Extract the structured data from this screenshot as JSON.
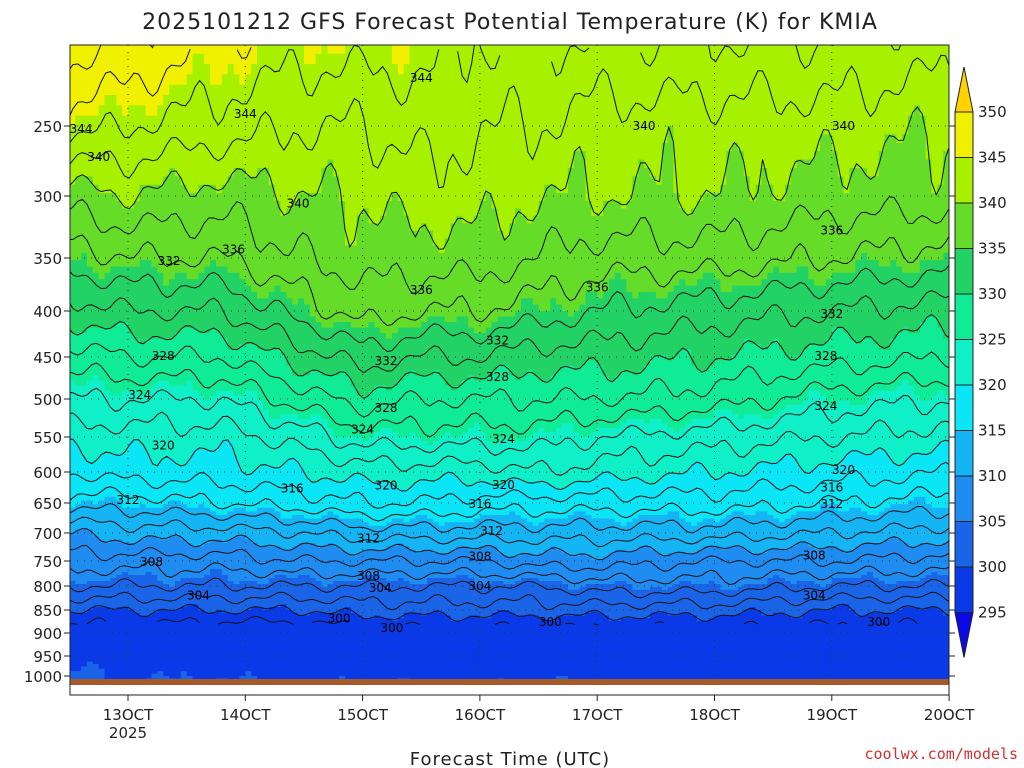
{
  "chart_data": {
    "type": "contour",
    "title": "2025101212 GFS Forecast Potential Temperature (K) for KMIA",
    "xlabel": "Forecast Time (UTC)",
    "ylabel": "",
    "credit": "coolwx.com/models",
    "x_ticks": [
      "13OCT",
      "14OCT",
      "15OCT",
      "16OCT",
      "17OCT",
      "18OCT",
      "19OCT",
      "20OCT"
    ],
    "x_year": "2025",
    "y_ticks": [
      "250",
      "300",
      "350",
      "400",
      "450",
      "500",
      "550",
      "600",
      "650",
      "700",
      "750",
      "800",
      "850",
      "900",
      "950",
      "1000"
    ],
    "y_values": [
      250,
      300,
      350,
      400,
      450,
      500,
      550,
      600,
      650,
      700,
      750,
      800,
      850,
      900,
      950,
      1000
    ],
    "ylim": [
      200,
      1010
    ],
    "xlim": [
      12.5,
      20.0
    ],
    "colorbar": {
      "levels": [
        295,
        300,
        305,
        310,
        315,
        320,
        325,
        330,
        335,
        340,
        345,
        350
      ],
      "labels": [
        "295",
        "300",
        "305",
        "310",
        "315",
        "320",
        "325",
        "330",
        "335",
        "340",
        "345",
        "350"
      ],
      "colors": [
        "#0a0ae8",
        "#0a3ae8",
        "#1a64e8",
        "#1e8cf0",
        "#14b4f5",
        "#0ae6f5",
        "#10f0c8",
        "#10eb96",
        "#23d264",
        "#64dc28",
        "#a6f000",
        "#f0f000",
        "#ffd200"
      ]
    },
    "contour_labels": [
      {
        "text": "344",
        "time": 15.5,
        "p": 222
      },
      {
        "text": "344",
        "time": 14.0,
        "p": 243
      },
      {
        "text": "344",
        "time": 12.6,
        "p": 252
      },
      {
        "text": "340",
        "time": 12.75,
        "p": 272
      },
      {
        "text": "340",
        "time": 17.4,
        "p": 250
      },
      {
        "text": "340",
        "time": 19.1,
        "p": 250
      },
      {
        "text": "340",
        "time": 14.45,
        "p": 306
      },
      {
        "text": "336",
        "time": 19.0,
        "p": 328
      },
      {
        "text": "336",
        "time": 13.9,
        "p": 343
      },
      {
        "text": "336",
        "time": 15.5,
        "p": 380
      },
      {
        "text": "336",
        "time": 17.0,
        "p": 378
      },
      {
        "text": "332",
        "time": 13.35,
        "p": 353
      },
      {
        "text": "332",
        "time": 19.0,
        "p": 403
      },
      {
        "text": "332",
        "time": 16.15,
        "p": 432
      },
      {
        "text": "332",
        "time": 15.2,
        "p": 455
      },
      {
        "text": "328",
        "time": 13.3,
        "p": 449
      },
      {
        "text": "328",
        "time": 18.95,
        "p": 449
      },
      {
        "text": "328",
        "time": 16.15,
        "p": 474
      },
      {
        "text": "328",
        "time": 15.2,
        "p": 512
      },
      {
        "text": "324",
        "time": 13.1,
        "p": 495
      },
      {
        "text": "324",
        "time": 18.95,
        "p": 509
      },
      {
        "text": "324",
        "time": 15.0,
        "p": 540
      },
      {
        "text": "324",
        "time": 16.2,
        "p": 553
      },
      {
        "text": "320",
        "time": 13.3,
        "p": 562
      },
      {
        "text": "320",
        "time": 19.1,
        "p": 597
      },
      {
        "text": "320",
        "time": 15.2,
        "p": 622
      },
      {
        "text": "320",
        "time": 16.2,
        "p": 621
      },
      {
        "text": "316",
        "time": 14.4,
        "p": 627
      },
      {
        "text": "316",
        "time": 19.0,
        "p": 625
      },
      {
        "text": "316",
        "time": 16.0,
        "p": 652
      },
      {
        "text": "312",
        "time": 13.0,
        "p": 645
      },
      {
        "text": "312",
        "time": 19.0,
        "p": 652
      },
      {
        "text": "312",
        "time": 15.05,
        "p": 710
      },
      {
        "text": "312",
        "time": 16.1,
        "p": 697
      },
      {
        "text": "308",
        "time": 13.2,
        "p": 752
      },
      {
        "text": "308",
        "time": 18.85,
        "p": 740
      },
      {
        "text": "308",
        "time": 15.05,
        "p": 780
      },
      {
        "text": "308",
        "time": 16.0,
        "p": 742
      },
      {
        "text": "304",
        "time": 13.6,
        "p": 820
      },
      {
        "text": "304",
        "time": 18.85,
        "p": 820
      },
      {
        "text": "304",
        "time": 15.15,
        "p": 804
      },
      {
        "text": "304",
        "time": 16.0,
        "p": 800
      },
      {
        "text": "300",
        "time": 14.8,
        "p": 869
      },
      {
        "text": "300",
        "time": 15.25,
        "p": 889
      },
      {
        "text": "300",
        "time": 16.6,
        "p": 876
      },
      {
        "text": "300",
        "time": 19.4,
        "p": 876
      }
    ]
  }
}
